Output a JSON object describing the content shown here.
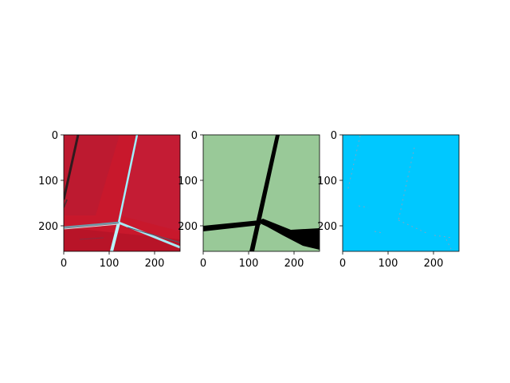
{
  "figure": {
    "panels": [
      {
        "name": "false-color-satellite-image",
        "xticks": [
          "0",
          "100",
          "200"
        ],
        "yticks": [
          "0",
          "100",
          "200"
        ],
        "colors": {
          "field": "#c8182c",
          "field_dark": "#b01428",
          "road": "#9ff0ff",
          "ditch": "#2f1a1e"
        }
      },
      {
        "name": "segmentation-mask",
        "xticks": [
          "0",
          "100",
          "200"
        ],
        "yticks": [
          "0",
          "100",
          "200"
        ],
        "colors": {
          "background": "#99c998",
          "road_mask": "#000000"
        }
      },
      {
        "name": "difference-map",
        "xticks": [
          "0",
          "100",
          "200"
        ],
        "yticks": [
          "0",
          "100",
          "200"
        ],
        "colors": {
          "background": "#00c8ff",
          "speckle": "#78a8c8"
        }
      }
    ]
  }
}
